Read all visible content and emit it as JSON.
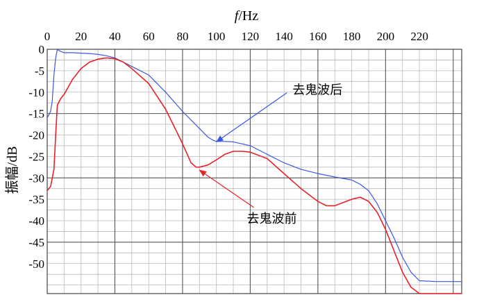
{
  "chart_data": {
    "type": "line",
    "title": "",
    "xlabel_italic": "f",
    "xlabel_unit": "/Hz",
    "ylabel": "振幅/dB",
    "xlim": [
      0,
      245
    ],
    "ylim": [
      -57,
      0
    ],
    "x_ticks": [
      0,
      20,
      40,
      60,
      80,
      100,
      120,
      140,
      160,
      180,
      200,
      220
    ],
    "y_ticks": [
      0,
      -5,
      -10,
      -15,
      -20,
      -25,
      -30,
      -35,
      -40,
      -45,
      -50
    ],
    "grid": true,
    "series": [
      {
        "name": "去鬼波后",
        "color": "#3b55e6",
        "x": [
          0,
          2,
          3,
          4,
          5,
          6,
          7,
          8,
          10,
          12,
          15,
          20,
          25,
          30,
          35,
          40,
          50,
          60,
          70,
          80,
          90,
          95,
          98,
          100,
          105,
          110,
          120,
          130,
          140,
          150,
          160,
          170,
          180,
          185,
          190,
          195,
          200,
          205,
          210,
          215,
          220,
          230,
          245
        ],
        "y": [
          -16,
          -14.5,
          -12,
          -6,
          -2,
          0,
          -0.3,
          -0.5,
          -0.8,
          -0.8,
          -0.8,
          -0.9,
          -1,
          -1.2,
          -1.5,
          -2,
          -4,
          -6,
          -10,
          -14.5,
          -18.5,
          -20.5,
          -21.2,
          -21.5,
          -21.5,
          -21.6,
          -22.5,
          -24.5,
          -26.5,
          -28,
          -29,
          -29.8,
          -30.5,
          -31.5,
          -33,
          -36,
          -40,
          -44,
          -48.5,
          -52,
          -54,
          -54.2,
          -54.2
        ]
      },
      {
        "name": "去鬼波前",
        "color": "#e8202a",
        "x": [
          0,
          2,
          4,
          5,
          6,
          8,
          10,
          15,
          20,
          25,
          30,
          35,
          40,
          45,
          50,
          60,
          70,
          80,
          85,
          88,
          90,
          95,
          100,
          105,
          110,
          115,
          120,
          130,
          140,
          150,
          160,
          165,
          170,
          180,
          185,
          190,
          195,
          200,
          205,
          210,
          215,
          220,
          230,
          245
        ],
        "y": [
          -33,
          -32,
          -28,
          -20,
          -13,
          -11.5,
          -10.5,
          -7,
          -4.5,
          -3,
          -2.3,
          -2,
          -2.2,
          -3,
          -4.5,
          -8,
          -14,
          -22,
          -26.5,
          -27.5,
          -27.5,
          -27,
          -25.8,
          -24.5,
          -23.8,
          -23.8,
          -24,
          -25.5,
          -29,
          -32.5,
          -35.5,
          -36.5,
          -36.5,
          -35,
          -34.5,
          -35.5,
          -38,
          -42,
          -47,
          -52,
          -55.5,
          -57,
          -57,
          -57
        ]
      }
    ],
    "annotations": [
      {
        "text": "去鬼波后",
        "series": "去鬼波后",
        "text_at": [
          145,
          -9.5
        ],
        "arrow_to": [
          100,
          -21.6
        ]
      },
      {
        "text": "去鬼波前",
        "series": "去鬼波前",
        "text_at": [
          118,
          -39.5
        ],
        "arrow_to": [
          90,
          -28.2
        ]
      }
    ]
  }
}
